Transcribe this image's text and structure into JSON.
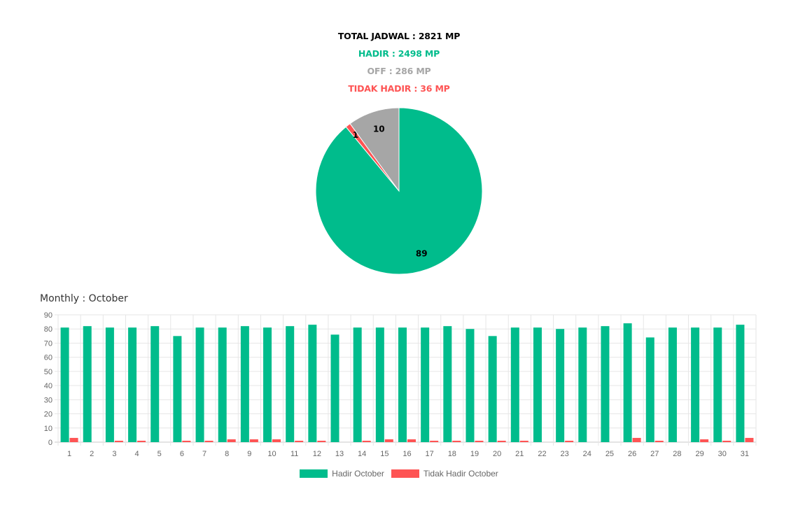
{
  "summary": {
    "total": "TOTAL JADWAL : 2821 MP",
    "hadir": "HADIR : 2498 MP",
    "off": "OFF : 286 MP",
    "tidak_hadir": "TIDAK HADIR : 36 MP"
  },
  "colors": {
    "hadir": "#00bc8c",
    "off": "#a6a6a6",
    "tidak_hadir": "#fe5454",
    "total_text": "#000000",
    "grid": "#e6e6e6",
    "axis_text": "#666666"
  },
  "monthly_title": "Monthly : October",
  "chart_data": [
    {
      "type": "pie",
      "labels": [
        "",
        "",
        ""
      ],
      "values": [
        89,
        1,
        10
      ],
      "data_labels": [
        "89",
        "1",
        "10"
      ],
      "colors": [
        "#00bc8c",
        "#fe5454",
        "#a6a6a6"
      ]
    },
    {
      "type": "bar",
      "title": "Monthly : October",
      "categories": [
        "1",
        "2",
        "3",
        "4",
        "5",
        "6",
        "7",
        "8",
        "9",
        "10",
        "11",
        "12",
        "13",
        "14",
        "15",
        "16",
        "17",
        "18",
        "19",
        "20",
        "21",
        "22",
        "23",
        "24",
        "25",
        "26",
        "27",
        "28",
        "29",
        "30",
        "31"
      ],
      "series": [
        {
          "name": "Hadir October",
          "color": "#00bc8c",
          "values": [
            81,
            82,
            81,
            81,
            82,
            75,
            81,
            81,
            82,
            81,
            82,
            83,
            76,
            81,
            81,
            81,
            81,
            82,
            80,
            75,
            81,
            81,
            80,
            81,
            82,
            84,
            74,
            81,
            81,
            81,
            83
          ]
        },
        {
          "name": "Tidak Hadir October",
          "color": "#fe5454",
          "values": [
            3,
            0,
            1,
            1,
            0,
            1,
            1,
            2,
            2,
            2,
            1,
            1,
            0,
            1,
            2,
            2,
            1,
            1,
            1,
            1,
            1,
            0,
            1,
            0,
            0,
            3,
            1,
            0,
            2,
            1,
            3
          ]
        }
      ],
      "ylim": [
        0,
        90
      ],
      "yticks": [
        0,
        10,
        20,
        30,
        40,
        50,
        60,
        70,
        80,
        90
      ],
      "grid": true,
      "legend": "bottom"
    }
  ]
}
